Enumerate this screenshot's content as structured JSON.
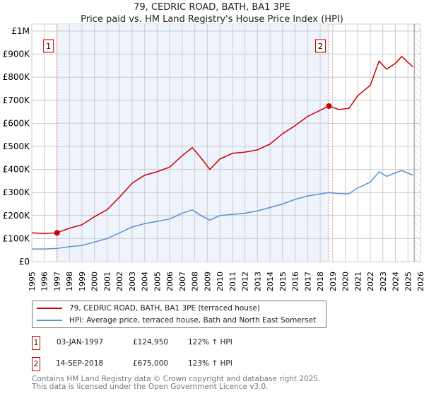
{
  "title": "79, CEDRIC ROAD, BATH, BA1 3PE",
  "subtitle": "Price paid vs. HM Land Registry's House Price Index (HPI)",
  "chart_data": {
    "type": "line",
    "title": "79, CEDRIC ROAD, BATH, BA1 3PE — Price paid vs. HM Land Registry's House Price Index (HPI)",
    "xlim": [
      1995,
      2026
    ],
    "ylim": [
      0,
      1000000
    ],
    "x_ticks": [
      "1995",
      "1996",
      "1997",
      "1998",
      "1999",
      "2000",
      "2001",
      "2002",
      "2003",
      "2004",
      "2005",
      "2006",
      "2007",
      "2008",
      "2009",
      "2010",
      "2011",
      "2012",
      "2013",
      "2014",
      "2015",
      "2016",
      "2017",
      "2018",
      "2019",
      "2020",
      "2021",
      "2022",
      "2023",
      "2024",
      "2025",
      "2026"
    ],
    "y_ticks": [
      {
        "v": 0,
        "label": "£0"
      },
      {
        "v": 100000,
        "label": "£100K"
      },
      {
        "v": 200000,
        "label": "£200K"
      },
      {
        "v": 300000,
        "label": "£300K"
      },
      {
        "v": 400000,
        "label": "£400K"
      },
      {
        "v": 500000,
        "label": "£500K"
      },
      {
        "v": 600000,
        "label": "£600K"
      },
      {
        "v": 700000,
        "label": "£700K"
      },
      {
        "v": 800000,
        "label": "£800K"
      },
      {
        "v": 900000,
        "label": "£900K"
      },
      {
        "v": 1000000,
        "label": "£1M"
      }
    ],
    "grid": true,
    "shaded_range": [
      1997.01,
      2018.7
    ],
    "hatched_from": 2025.5,
    "series": [
      {
        "name": "79, CEDRIC ROAD, BATH, BA1 3PE (terraced house)",
        "color": "#cc0000",
        "x": [
          1995,
          1996,
          1997,
          1998,
          1999,
          2000,
          2001,
          2002,
          2003,
          2004,
          2005,
          2006,
          2007,
          2007.8,
          2008.5,
          2009.2,
          2010,
          2011,
          2012,
          2013,
          2014,
          2015,
          2016,
          2017,
          2018.7,
          2019.5,
          2020.3,
          2021,
          2022,
          2022.7,
          2023.3,
          2024,
          2024.5,
          2025.4
        ],
        "y": [
          125000,
          122000,
          125000,
          145000,
          160000,
          195000,
          225000,
          280000,
          340000,
          375000,
          390000,
          410000,
          460000,
          495000,
          450000,
          400000,
          445000,
          470000,
          475000,
          485000,
          510000,
          555000,
          590000,
          630000,
          675000,
          660000,
          665000,
          720000,
          765000,
          870000,
          835000,
          860000,
          890000,
          845000
        ]
      },
      {
        "name": "HPI: Average price, terraced house, Bath and North East Somerset",
        "color": "#5b8fd6",
        "x": [
          1995,
          1996,
          1997,
          1998,
          1999,
          2000,
          2001,
          2002,
          2003,
          2004,
          2005,
          2006,
          2007,
          2007.8,
          2008.5,
          2009.2,
          2010,
          2011,
          2012,
          2013,
          2014,
          2015,
          2016,
          2017,
          2018.7,
          2019.5,
          2020.3,
          2021,
          2022,
          2022.7,
          2023.3,
          2024,
          2024.5,
          2025.4
        ],
        "y": [
          55000,
          55000,
          57000,
          65000,
          70000,
          85000,
          100000,
          125000,
          150000,
          165000,
          175000,
          185000,
          210000,
          225000,
          200000,
          180000,
          200000,
          205000,
          210000,
          220000,
          235000,
          250000,
          270000,
          285000,
          300000,
          295000,
          295000,
          320000,
          345000,
          390000,
          370000,
          385000,
          395000,
          375000
        ]
      }
    ],
    "sales": [
      {
        "label": "1",
        "x": 1997.01,
        "y": 124950
      },
      {
        "label": "2",
        "x": 2018.7,
        "y": 675000
      }
    ]
  },
  "legend": {
    "red": "79, CEDRIC ROAD, BATH, BA1 3PE (terraced house)",
    "blue": "HPI: Average price, terraced house, Bath and North East Somerset"
  },
  "sales_table": [
    {
      "num": "1",
      "date": "03-JAN-1997",
      "price": "£124,950",
      "hpi": "122% ↑ HPI"
    },
    {
      "num": "2",
      "date": "14-SEP-2018",
      "price": "£675,000",
      "hpi": "123% ↑ HPI"
    }
  ],
  "footer": {
    "line1": "Contains HM Land Registry data © Crown copyright and database right 2025.",
    "line2": "This data is licensed under the Open Government Licence v3.0."
  }
}
